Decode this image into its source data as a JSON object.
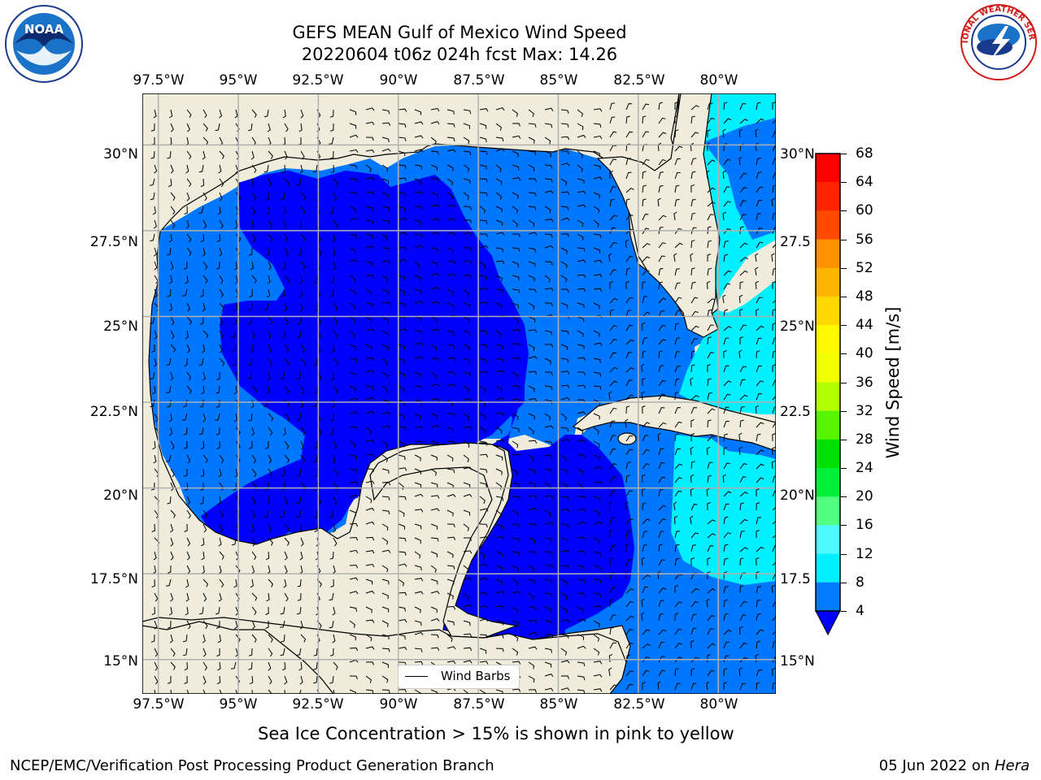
{
  "title": {
    "line1": "GEFS MEAN Gulf of Mexico Wind Speed",
    "line2": "20220604 t06z 024h fcst   Max: 14.26"
  },
  "logos": {
    "left": {
      "name": "noaa-logo",
      "text": "NOAA"
    },
    "right": {
      "name": "nws-logo",
      "text": "NATIONAL WEATHER SERVICE"
    }
  },
  "map": {
    "lon_labels": [
      "97.5°W",
      "95°W",
      "92.5°W",
      "90°W",
      "87.5°W",
      "85°W",
      "82.5°W",
      "80°W"
    ],
    "lat_labels_left": [
      "30°N",
      "27.5°N",
      "25°N",
      "22.5°N",
      "20°N",
      "17.5°N",
      "15°N"
    ],
    "lat_labels_right": [
      "30°N",
      "27.5",
      "25°N",
      "22.5",
      "20°N",
      "17.5",
      "15°N"
    ],
    "extent": {
      "lon_min": -98,
      "lon_max": -78.2,
      "lat_min": 14,
      "lat_max": 31.5
    },
    "colors": {
      "land": "#efecdc",
      "grid": "#b0b0b0",
      "coast": "#000000"
    }
  },
  "legend": {
    "label": "Wind Barbs"
  },
  "colorbar": {
    "title": "Wind Speed [m/s]",
    "ticks": [
      "68",
      "64",
      "60",
      "56",
      "52",
      "48",
      "44",
      "40",
      "36",
      "32",
      "28",
      "24",
      "20",
      "16",
      "12",
      "8",
      "4"
    ],
    "colors": [
      "#ff0000",
      "#ff2400",
      "#ff4a00",
      "#ff6e00",
      "#ff9200",
      "#ffb400",
      "#ffd900",
      "#fff900",
      "#f2ff00",
      "#d8fb00",
      "#b6ff00",
      "#58f500",
      "#00e000",
      "#00f03a",
      "#50ff80",
      "#96fff3",
      "#4cfaff",
      "#00f0ff",
      "#007aff"
    ],
    "under_color": "#0000ff"
  },
  "wind_speed_bins": {
    "blue": "#0000ff",
    "mid": "#0077ff",
    "cyan": "#00f0ff"
  },
  "note": "Sea Ice Concentration > 15% is shown in pink to yellow",
  "footer": {
    "left": "NCEP/EMC/Verification Post Processing Product Generation Branch",
    "right_date": "05 Jun 2022 on ",
    "right_machine": "Hera"
  }
}
